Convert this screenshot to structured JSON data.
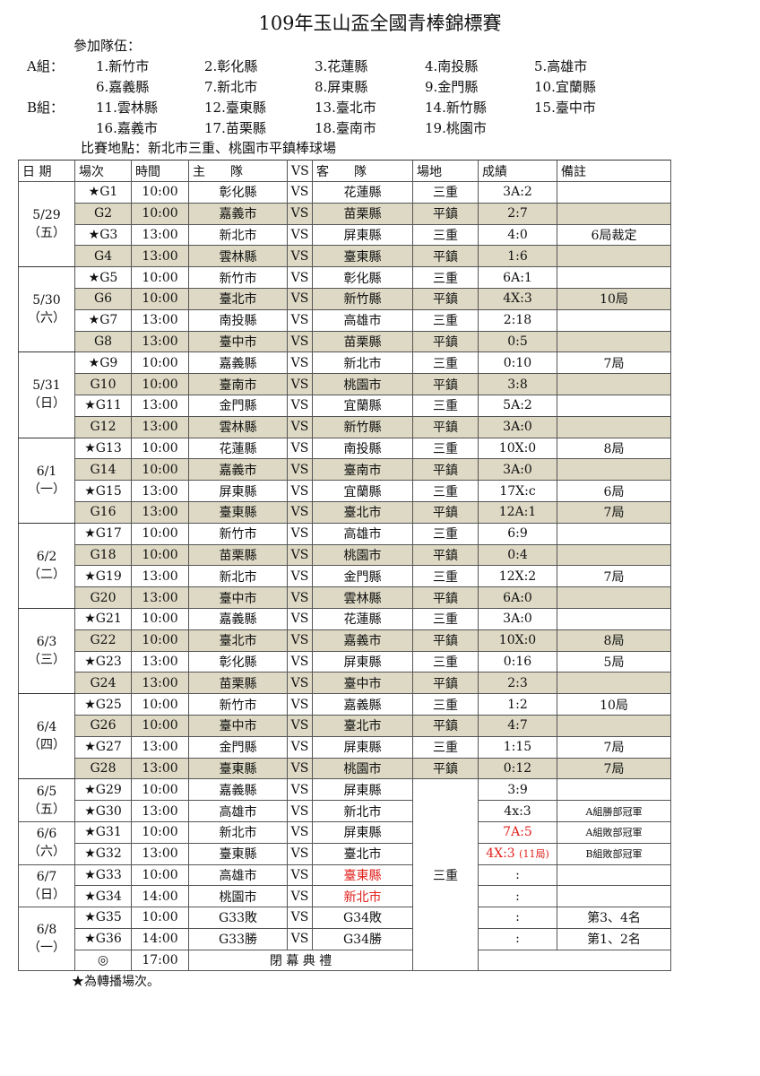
{
  "title": "109年玉山盃全國青棒錦標賽",
  "participants_label": "參加隊伍：",
  "groups": [
    {
      "label": "A組：",
      "teams": [
        "1.新竹市",
        "2.彰化縣",
        "3.花蓮縣",
        "4.南投縣",
        "5.高雄市",
        "6.嘉義縣",
        "7.新北市",
        "8.屏東縣",
        "9.金門縣",
        "10.宜蘭縣"
      ]
    },
    {
      "label": "B組：",
      "teams": [
        "11.雲林縣",
        "12.臺東縣",
        "13.臺北市",
        "14.新竹縣",
        "15.臺中市",
        "16.嘉義市",
        "17.苗栗縣",
        "18.臺南市",
        "19.桃園市"
      ]
    }
  ],
  "venue_line": "比賽地點：新北市三重、桃園市平鎮棒球場",
  "headers": [
    "日 期",
    "場次",
    "時間",
    "主　　隊",
    "VS",
    "客　　隊",
    "場地",
    "成績",
    "備註"
  ],
  "colors": {
    "shade": "#ddd9c4",
    "red": "#e0201c"
  },
  "dates": [
    {
      "date": "5/29",
      "day": "（五）",
      "rows": 4
    },
    {
      "date": "5/30",
      "day": "（六）",
      "rows": 4
    },
    {
      "date": "5/31",
      "day": "（日）",
      "rows": 4
    },
    {
      "date": "6/1",
      "day": "（一）",
      "rows": 4
    },
    {
      "date": "6/2",
      "day": "（二）",
      "rows": 4
    },
    {
      "date": "6/3",
      "day": "（三）",
      "rows": 4
    },
    {
      "date": "6/4",
      "day": "（四）",
      "rows": 4
    },
    {
      "date": "6/5",
      "day": "（五）",
      "rows": 2
    },
    {
      "date": "6/6",
      "day": "（六）",
      "rows": 2
    },
    {
      "date": "6/7",
      "day": "（日）",
      "rows": 2
    },
    {
      "date": "6/8",
      "day": "（一）",
      "rows": 3
    }
  ],
  "games": [
    {
      "game": "★G1",
      "time": "10:00",
      "home": "彰化縣",
      "vs": "VS",
      "away": "花蓮縣",
      "venue": "三重",
      "score": "3A:2",
      "note": ""
    },
    {
      "game": "G2",
      "time": "10:00",
      "home": "嘉義市",
      "vs": "VS",
      "away": "苗栗縣",
      "venue": "平鎮",
      "score": "2:7",
      "note": ""
    },
    {
      "game": "★G3",
      "time": "13:00",
      "home": "新北市",
      "vs": "VS",
      "away": "屏東縣",
      "venue": "三重",
      "score": "4:0",
      "note": "6局裁定"
    },
    {
      "game": "G4",
      "time": "13:00",
      "home": "雲林縣",
      "vs": "VS",
      "away": "臺東縣",
      "venue": "平鎮",
      "score": "1:6",
      "note": ""
    },
    {
      "game": "★G5",
      "time": "10:00",
      "home": "新竹市",
      "vs": "VS",
      "away": "彰化縣",
      "venue": "三重",
      "score": "6A:1",
      "note": ""
    },
    {
      "game": "G6",
      "time": "10:00",
      "home": "臺北市",
      "vs": "VS",
      "away": "新竹縣",
      "venue": "平鎮",
      "score": "4X:3",
      "note": "10局"
    },
    {
      "game": "★G7",
      "time": "13:00",
      "home": "南投縣",
      "vs": "VS",
      "away": "高雄市",
      "venue": "三重",
      "score": "2:18",
      "note": ""
    },
    {
      "game": "G8",
      "time": "13:00",
      "home": "臺中市",
      "vs": "VS",
      "away": "苗栗縣",
      "venue": "平鎮",
      "score": "0:5",
      "note": ""
    },
    {
      "game": "★G9",
      "time": "10:00",
      "home": "嘉義縣",
      "vs": "VS",
      "away": "新北市",
      "venue": "三重",
      "score": "0:10",
      "note": "7局"
    },
    {
      "game": "G10",
      "time": "10:00",
      "home": "臺南市",
      "vs": "VS",
      "away": "桃園市",
      "venue": "平鎮",
      "score": "3:8",
      "note": ""
    },
    {
      "game": "★G11",
      "time": "13:00",
      "home": "金門縣",
      "vs": "VS",
      "away": "宜蘭縣",
      "venue": "三重",
      "score": "5A:2",
      "note": ""
    },
    {
      "game": "G12",
      "time": "13:00",
      "home": "雲林縣",
      "vs": "VS",
      "away": "新竹縣",
      "venue": "平鎮",
      "score": "3A:0",
      "note": ""
    },
    {
      "game": "★G13",
      "time": "10:00",
      "home": "花蓮縣",
      "vs": "VS",
      "away": "南投縣",
      "venue": "三重",
      "score": "10X:0",
      "note": "8局"
    },
    {
      "game": "G14",
      "time": "10:00",
      "home": "嘉義市",
      "vs": "VS",
      "away": "臺南市",
      "venue": "平鎮",
      "score": "3A:0",
      "note": ""
    },
    {
      "game": "★G15",
      "time": "13:00",
      "home": "屏東縣",
      "vs": "VS",
      "away": "宜蘭縣",
      "venue": "三重",
      "score": "17X:c",
      "note": "6局"
    },
    {
      "game": "G16",
      "time": "13:00",
      "home": "臺東縣",
      "vs": "VS",
      "away": "臺北市",
      "venue": "平鎮",
      "score": "12A:1",
      "note": "7局"
    },
    {
      "game": "★G17",
      "time": "10:00",
      "home": "新竹市",
      "vs": "VS",
      "away": "高雄市",
      "venue": "三重",
      "score": "6:9",
      "note": ""
    },
    {
      "game": "G18",
      "time": "10:00",
      "home": "苗栗縣",
      "vs": "VS",
      "away": "桃園市",
      "venue": "平鎮",
      "score": "0:4",
      "note": ""
    },
    {
      "game": "★G19",
      "time": "13:00",
      "home": "新北市",
      "vs": "VS",
      "away": "金門縣",
      "venue": "三重",
      "score": "12X:2",
      "note": "7局"
    },
    {
      "game": "G20",
      "time": "13:00",
      "home": "臺中市",
      "vs": "VS",
      "away": "雲林縣",
      "venue": "平鎮",
      "score": "6A:0",
      "note": ""
    },
    {
      "game": "★G21",
      "time": "10:00",
      "home": "嘉義縣",
      "vs": "VS",
      "away": "花蓮縣",
      "venue": "三重",
      "score": "3A:0",
      "note": ""
    },
    {
      "game": "G22",
      "time": "10:00",
      "home": "臺北市",
      "vs": "VS",
      "away": "嘉義市",
      "venue": "平鎮",
      "score": "10X:0",
      "note": "8局"
    },
    {
      "game": "★G23",
      "time": "13:00",
      "home": "彰化縣",
      "vs": "VS",
      "away": "屏東縣",
      "venue": "三重",
      "score": "0:16",
      "note": "5局"
    },
    {
      "game": "G24",
      "time": "13:00",
      "home": "苗栗縣",
      "vs": "VS",
      "away": "臺中市",
      "venue": "平鎮",
      "score": "2:3",
      "note": ""
    },
    {
      "game": "★G25",
      "time": "10:00",
      "home": "新竹市",
      "vs": "VS",
      "away": "嘉義縣",
      "venue": "三重",
      "score": "1:2",
      "note": "10局"
    },
    {
      "game": "G26",
      "time": "10:00",
      "home": "臺中市",
      "vs": "VS",
      "away": "臺北市",
      "venue": "平鎮",
      "score": "4:7",
      "note": ""
    },
    {
      "game": "★G27",
      "time": "13:00",
      "home": "金門縣",
      "vs": "VS",
      "away": "屏東縣",
      "venue": "三重",
      "score": "1:15",
      "note": "7局"
    },
    {
      "game": "G28",
      "time": "13:00",
      "home": "臺東縣",
      "vs": "VS",
      "away": "桃園市",
      "venue": "平鎮",
      "score": "0:12",
      "note": "7局"
    },
    {
      "game": "★G29",
      "time": "10:00",
      "home": "嘉義縣",
      "vs": "VS",
      "away": "屏東縣",
      "score": "3:9",
      "note": ""
    },
    {
      "game": "★G30",
      "time": "13:00",
      "home": "高雄市",
      "vs": "VS",
      "away": "新北市",
      "score": "4x:3",
      "note": "A組勝部冠軍"
    },
    {
      "game": "★G31",
      "time": "10:00",
      "home": "新北市",
      "vs": "VS",
      "away": "屏東縣",
      "score": "7A:5",
      "score_red": true,
      "note": "A組敗部冠軍"
    },
    {
      "game": "★G32",
      "time": "13:00",
      "home": "臺東縣",
      "vs": "VS",
      "away": "臺北市",
      "score": "4X:3",
      "score_extra": "(11局)",
      "score_red": true,
      "note": "B組敗部冠軍"
    },
    {
      "game": "★G33",
      "time": "10:00",
      "home": "高雄市",
      "vs": "VS",
      "away": "臺東縣",
      "away_red": true,
      "score": ":",
      "note": ""
    },
    {
      "game": "★G34",
      "time": "14:00",
      "home": "桃園市",
      "vs": "VS",
      "away": "新北市",
      "away_red": true,
      "score": ":",
      "note": ""
    },
    {
      "game": "★G35",
      "time": "10:00",
      "home": "G33敗",
      "vs": "VS",
      "away": "G34敗",
      "score": ":",
      "note": "第3、4名"
    },
    {
      "game": "★G36",
      "time": "14:00",
      "home": "G33勝",
      "vs": "VS",
      "away": "G34勝",
      "score": ":",
      "note": "第1、2名"
    }
  ],
  "finals_venue": "三重",
  "ceremony": {
    "game": "◎",
    "time": "17:00",
    "label": "閉 幕 典 禮"
  },
  "footnote": "★為轉播場次。"
}
